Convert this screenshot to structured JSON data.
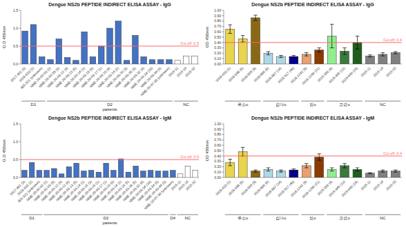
{
  "chart_data": [
    {
      "type": "bar",
      "title": "Dengue NS2b PEPTIDE INDIRECT ELISA ASSAY - IgG",
      "y_label": "O.D 450mm",
      "x_label": "patients",
      "categories": [
        "2017-461 (3)",
        "2018-633 (2)",
        "IBS-321 (unknown)",
        "NME-20-02-03 (2)",
        "NME-20-02-09 (3)",
        "NME-20-03-12 (4)",
        "NME-20-03-13 (5)",
        "NME-20-03-14 (1)",
        "NME-20-03-15 (0)",
        "NME-20-03-17 (1)",
        "NME-20-03-23 (4)",
        "NME-20-03-24 (2)",
        "NME-20-03-20 (3)",
        "NME-20-03-28 (3)",
        "NME-20-03-32 (4)",
        "NME-20-03-34 (10)",
        "NME-20-03-44 (3)",
        "NME-20-07-30 (unknown)",
        "2015-11",
        "2015-16",
        "2015-32"
      ],
      "values": [
        0.92,
        1.1,
        0.2,
        0.12,
        0.7,
        0.18,
        0.1,
        0.9,
        0.2,
        0.5,
        1.0,
        1.2,
        0.1,
        0.8,
        0.2,
        0.12,
        0.12,
        0.12,
        0.1,
        0.22,
        0.22
      ],
      "colors": [
        "#4472C4",
        "#4472C4",
        "#4472C4",
        "#4472C4",
        "#4472C4",
        "#4472C4",
        "#4472C4",
        "#4472C4",
        "#4472C4",
        "#4472C4",
        "#4472C4",
        "#4472C4",
        "#4472C4",
        "#4472C4",
        "#4472C4",
        "#4472C4",
        "#4472C4",
        "#4472C4",
        "#FFFFFF",
        "#FFFFFF",
        "#FFFFFF"
      ],
      "groups": [
        {
          "name": "D1",
          "first": 0,
          "last": 2
        },
        {
          "name": "D2",
          "first": 3,
          "last": 17
        },
        {
          "name": "NC",
          "first": 18,
          "last": 20
        }
      ],
      "cutoff": {
        "value": 0.5,
        "label": "Cut off: 0.5",
        "color": "#FF6666"
      },
      "ylim": [
        0,
        1.5
      ],
      "yticks": [
        {
          "value": 0,
          "label": "0.0"
        },
        0.5,
        {
          "value": 1,
          "label": "1.0"
        },
        1.5
      ],
      "grid": false
    },
    {
      "type": "bar",
      "title": "Dengue NS2b PEPTIDE INDIRECT ELISA ASSAY - IgG",
      "y_label": "OD 450mm",
      "categories": [
        "2018-633 (2)",
        "2018-648 (6)",
        "2018-669 (9)",
        "2018-886 (6)",
        "2018-887 (14)",
        "2018-917 (40)",
        "2018-1242 (9)",
        "2018-1296 (21)",
        "2019-393 (4)",
        "2019-445 (12)",
        "2019-640 (19)",
        "2015-11",
        "2015-14",
        "2015-33"
      ],
      "values": [
        0.65,
        0.47,
        0.86,
        0.2,
        0.14,
        0.14,
        0.18,
        0.26,
        0.52,
        0.24,
        0.4,
        0.15,
        0.18,
        0.21
      ],
      "errors": [
        0.08,
        0.06,
        0.05,
        0.03,
        0.02,
        0.02,
        0.03,
        0.04,
        0.22,
        0.06,
        0.12,
        0.02,
        0.03,
        0.02
      ],
      "colors": [
        "#E8D44D",
        "#E8D44D",
        "#8B6914",
        "#ADD8E6",
        "#ADD8E6",
        "#00008B",
        "#E8A070",
        "#8B3A00",
        "#90EE90",
        "#3A7A3A",
        "#1E5E1E",
        "#808080",
        "#808080",
        "#808080"
      ],
      "groups": [
        {
          "name": "류소o",
          "first": 0,
          "last": 2
        },
        {
          "name": "김다o",
          "first": 3,
          "last": 5
        },
        {
          "name": "정o",
          "first": 6,
          "last": 7
        },
        {
          "name": "고경o",
          "first": 8,
          "last": 10
        },
        {
          "name": "NC",
          "first": 11,
          "last": 13
        }
      ],
      "cutoff": {
        "value": 0.4,
        "label": "Cut-off: 0.4",
        "color": "#FF6666"
      },
      "ylim": [
        0,
        1
      ],
      "yticks": [
        {
          "value": 0,
          "label": "0.00"
        },
        {
          "value": 0.1,
          "label": "0.10"
        },
        {
          "value": 0.2,
          "label": "0.20"
        },
        {
          "value": 0.3,
          "label": "0.30"
        },
        {
          "value": 0.4,
          "label": "0.40"
        },
        {
          "value": 0.5,
          "label": "0.50"
        },
        {
          "value": 0.6,
          "label": "0.60"
        },
        {
          "value": 0.7,
          "label": "0.70"
        },
        {
          "value": 0.8,
          "label": "0.80"
        },
        {
          "value": 0.9,
          "label": "0.90"
        },
        {
          "value": 1,
          "label": "1.00"
        }
      ],
      "grid": false
    },
    {
      "type": "bar",
      "title": "Dengue NS2b PEPTIDE INDIRECT ELISA ASSAY - IgM",
      "y_label": "O.D 450mm",
      "x_label": "patients",
      "categories": [
        "2017-461 (3)",
        "2018-633 (2)",
        "IBS-321 (unknown)",
        "NME-20-02-02 (2)",
        "NME-20-02-03 (5)",
        "NME-20-03-12 (4)",
        "NME-20-03-12 (6)",
        "NME-20-03-13 (5)",
        "NME-20-03-14 (1)",
        "NME-20-03-15 (3)",
        "NME-20-03-16 (1)",
        "NME-20-03-17 (1)",
        "NME-20-03-23 (0)",
        "NME-20-03-24 (2)",
        "NME-20-03-16 (5)",
        "NME-20-03-28 (5)",
        "NME-20-03-32 (6)",
        "NME-20-03-34 (10)",
        "NME-20-03-34 (5)",
        "NME-20-03-44 (3)",
        "NME-20-07-30 (unknown)",
        "2015-11",
        "2015-16",
        "2015-32"
      ],
      "values": [
        0.2,
        0.42,
        0.2,
        0.2,
        0.25,
        0.1,
        0.3,
        0.4,
        0.18,
        0.2,
        0.15,
        0.4,
        0.2,
        0.52,
        0.15,
        0.32,
        0.18,
        0.2,
        0.18,
        0.18,
        0.2,
        0.1,
        0.32,
        0.2
      ],
      "colors": [
        "#4472C4",
        "#4472C4",
        "#4472C4",
        "#4472C4",
        "#4472C4",
        "#4472C4",
        "#4472C4",
        "#4472C4",
        "#4472C4",
        "#4472C4",
        "#4472C4",
        "#4472C4",
        "#4472C4",
        "#4472C4",
        "#4472C4",
        "#4472C4",
        "#4472C4",
        "#4472C4",
        "#4472C4",
        "#4472C4",
        "#4472C4",
        "#FFFFFF",
        "#FFFFFF",
        "#FFFFFF"
      ],
      "groups": [
        {
          "name": "D1",
          "first": 0,
          "last": 2
        },
        {
          "name": "D2",
          "first": 3,
          "last": 19
        },
        {
          "name": "D4",
          "first": 20,
          "last": 20
        },
        {
          "name": "NC",
          "first": 21,
          "last": 23
        }
      ],
      "cutoff": {
        "value": 0.5,
        "label": "Cut off: 0.5",
        "color": "#FF6666"
      },
      "ylim": [
        0,
        1.5
      ],
      "yticks": [
        {
          "value": 0,
          "label": "0.0"
        },
        0.5,
        {
          "value": 1,
          "label": "1.0"
        },
        1.5
      ],
      "grid": false
    },
    {
      "type": "bar",
      "title": "Dengue NS2b PEPTIDE INDIRECT ELISA ASSAY - IgM",
      "y_label": "OD 450mm",
      "categories": [
        "2018-633 (2)",
        "2018-648 (6)",
        "2018-669 (9)",
        "2018-886 (6)",
        "2018-887 (14)",
        "2018-917 (40)",
        "2018-1242 (9)",
        "2018-1296 (21)",
        "2019-393 (4)",
        "2019-445 (12)",
        "2019-640 (19)",
        "2015-11",
        "2015-14",
        "2015-33"
      ],
      "values": [
        0.28,
        0.48,
        0.12,
        0.15,
        0.12,
        0.14,
        0.22,
        0.38,
        0.15,
        0.22,
        0.15,
        0.08,
        0.12,
        0.12
      ],
      "errors": [
        0.06,
        0.08,
        0.02,
        0.03,
        0.02,
        0.02,
        0.04,
        0.06,
        0.03,
        0.04,
        0.03,
        0.01,
        0.02,
        0.02
      ],
      "colors": [
        "#E8D44D",
        "#E8D44D",
        "#8B6914",
        "#ADD8E6",
        "#ADD8E6",
        "#00008B",
        "#E8A070",
        "#8B3A00",
        "#90EE90",
        "#3A7A3A",
        "#1E5E1E",
        "#808080",
        "#808080",
        "#808080"
      ],
      "groups": [
        {
          "name": "류소o",
          "first": 0,
          "last": 2
        },
        {
          "name": "김다o",
          "first": 3,
          "last": 5
        },
        {
          "name": "정o",
          "first": 6,
          "last": 7
        },
        {
          "name": "고경o",
          "first": 8,
          "last": 10
        },
        {
          "name": "NC",
          "first": 11,
          "last": 13
        }
      ],
      "cutoff": {
        "value": 0.4,
        "label": "Cut-off: 0.4",
        "color": "#FF6666"
      },
      "ylim": [
        0,
        1
      ],
      "yticks": [
        {
          "value": 0,
          "label": "0.00"
        },
        {
          "value": 0.1,
          "label": "0.10"
        },
        {
          "value": 0.2,
          "label": "0.20"
        },
        {
          "value": 0.3,
          "label": "0.30"
        },
        {
          "value": 0.4,
          "label": "0.40"
        },
        {
          "value": 0.5,
          "label": "0.50"
        },
        {
          "value": 0.6,
          "label": "0.60"
        },
        {
          "value": 0.7,
          "label": "0.70"
        },
        {
          "value": 0.8,
          "label": "0.80"
        },
        {
          "value": 0.9,
          "label": "0.90"
        },
        {
          "value": 1,
          "label": "1.00"
        }
      ],
      "grid": false
    }
  ]
}
